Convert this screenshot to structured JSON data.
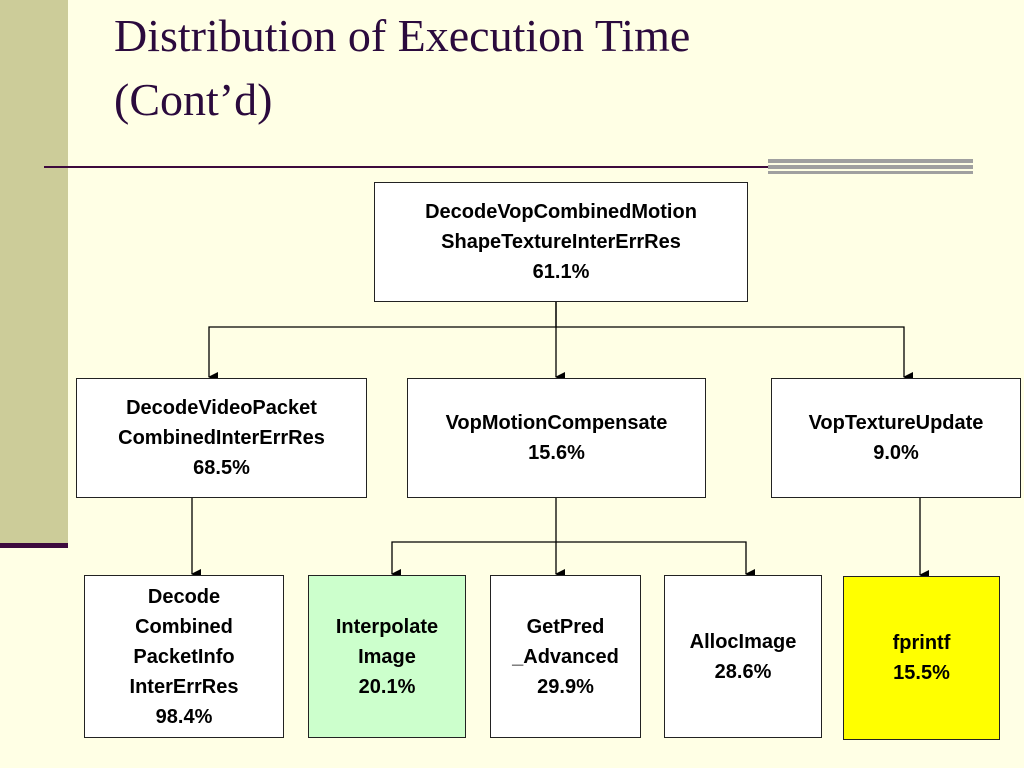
{
  "title": {
    "line1": "Distribution of Execution Time",
    "line2": "(Cont’d)"
  },
  "nodes": {
    "root": {
      "lines": [
        "DecodeVopCombinedMotion",
        "ShapeTextureInterErrRes",
        "61.1%"
      ],
      "fill": "#FFFFFF"
    },
    "decode_video_packet": {
      "lines": [
        "DecodeVideoPacket",
        "CombinedInterErrRes",
        "68.5%"
      ],
      "fill": "#FFFFFF"
    },
    "vop_motion_compensate": {
      "lines": [
        "VopMotionCompensate",
        "15.6%"
      ],
      "fill": "#FFFFFF"
    },
    "vop_texture_update": {
      "lines": [
        "VopTextureUpdate",
        "9.0%"
      ],
      "fill": "#FFFFFF"
    },
    "decode_combined_packetinfo": {
      "lines": [
        "Decode",
        "Combined",
        "PacketInfo",
        "InterErrRes",
        "98.4%"
      ],
      "fill": "#FFFFFF"
    },
    "interpolate_image": {
      "lines": [
        "Interpolate",
        "Image",
        "20.1%"
      ],
      "fill": "#CCFFCC"
    },
    "getpred_advanced": {
      "lines": [
        "GetPred",
        "_Advanced",
        "29.9%"
      ],
      "fill": "#FFFFFF"
    },
    "allocimage": {
      "lines": [
        "AllocImage",
        "28.6%"
      ],
      "fill": "#FFFFFF"
    },
    "fprintf": {
      "lines": [
        "fprintf",
        "15.5%"
      ],
      "fill": "#FFFF00"
    }
  },
  "edges": [
    [
      "root",
      "decode_video_packet"
    ],
    [
      "root",
      "vop_motion_compensate"
    ],
    [
      "root",
      "vop_texture_update"
    ],
    [
      "decode_video_packet",
      "decode_combined_packetinfo"
    ],
    [
      "vop_motion_compensate",
      "interpolate_image"
    ],
    [
      "vop_motion_compensate",
      "getpred_advanced"
    ],
    [
      "vop_motion_compensate",
      "allocimage"
    ],
    [
      "vop_texture_update",
      "fprintf"
    ]
  ]
}
